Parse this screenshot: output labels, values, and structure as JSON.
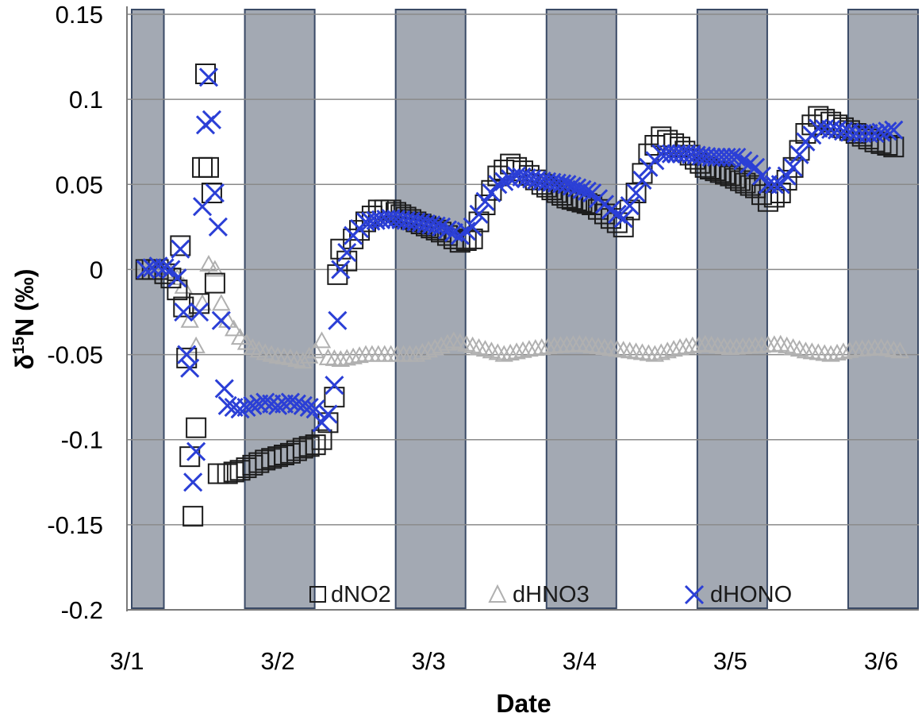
{
  "chart_data": {
    "type": "scatter",
    "title": "",
    "xlabel": "Date",
    "ylabel": "δ15N (‰)",
    "ylabel_main": "δ",
    "ylabel_sup": "15",
    "ylabel_rest": "N (‰)",
    "xlim": [
      "3/1 00:00",
      "3/6 06:00"
    ],
    "ylim": [
      -0.2,
      0.15
    ],
    "x_ticks": [
      "3/1",
      "3/2",
      "3/3",
      "3/4",
      "3/5",
      "3/6"
    ],
    "y_ticks": [
      "0.15",
      "0.1",
      "0.05",
      "0",
      "-0.05",
      "-0.1",
      "-0.15",
      "-0.2"
    ],
    "y_tick_values": [
      0.15,
      0.1,
      0.05,
      0,
      -0.05,
      -0.1,
      -0.15,
      -0.2
    ],
    "grid": "horizontal",
    "legend_position": "bottom",
    "night_bands": [
      [
        "3/1 00:00",
        "3/1 06:00"
      ],
      [
        "3/1 18:00",
        "3/2 06:00"
      ],
      [
        "3/2 18:00",
        "3/3 06:00"
      ],
      [
        "3/3 18:00",
        "3/4 06:00"
      ],
      [
        "3/4 18:00",
        "3/5 06:00"
      ],
      [
        "3/5 18:00",
        "3/6 06:00"
      ]
    ],
    "colors": {
      "band": "#a3a9b3",
      "band_border": "#3a4a66",
      "dNO2": "#1c1c1c",
      "dHNO3": "#b0b0b0",
      "dHONO": "#2b3fd6"
    },
    "series": [
      {
        "name": "dNO2",
        "marker": "square",
        "points": [
          [
            "3/1 03:00",
            0.0
          ],
          [
            "3/1 05:00",
            0.0
          ],
          [
            "3/1 07:00",
            -0.005
          ],
          [
            "3/1 08:00",
            -0.012
          ],
          [
            "3/1 08:30",
            0.014
          ],
          [
            "3/1 09:00",
            -0.022
          ],
          [
            "3/1 09:30",
            -0.052
          ],
          [
            "3/1 10:00",
            -0.11
          ],
          [
            "3/1 10:30",
            -0.145
          ],
          [
            "3/1 11:00",
            -0.093
          ],
          [
            "3/1 11:30",
            -0.02
          ],
          [
            "3/1 12:00",
            0.06
          ],
          [
            "3/1 12:30",
            0.115
          ],
          [
            "3/1 13:00",
            0.06
          ],
          [
            "3/1 13:30",
            0.045
          ],
          [
            "3/1 14:00",
            -0.008
          ],
          [
            "3/1 14:30",
            -0.12
          ],
          [
            "3/1 16:00",
            -0.12
          ],
          [
            "3/1 18:00",
            -0.118
          ],
          [
            "3/1 20:00",
            -0.115
          ],
          [
            "3/1 22:00",
            -0.112
          ],
          [
            "3/2 00:00",
            -0.11
          ],
          [
            "3/2 02:00",
            -0.108
          ],
          [
            "3/2 04:00",
            -0.105
          ],
          [
            "3/2 06:00",
            -0.103
          ],
          [
            "3/2 07:00",
            -0.1
          ],
          [
            "3/2 08:00",
            -0.09
          ],
          [
            "3/2 09:00",
            -0.075
          ],
          [
            "3/2 09:30",
            -0.003
          ],
          [
            "3/2 10:00",
            0.012
          ],
          [
            "3/2 11:00",
            0.005
          ],
          [
            "3/2 12:00",
            0.018
          ],
          [
            "3/2 14:00",
            0.028
          ],
          [
            "3/2 16:00",
            0.035
          ],
          [
            "3/2 18:00",
            0.035
          ],
          [
            "3/2 22:00",
            0.028
          ],
          [
            "3/3 02:00",
            0.022
          ],
          [
            "3/3 05:00",
            0.016
          ],
          [
            "3/3 07:00",
            0.018
          ],
          [
            "3/3 09:00",
            0.038
          ],
          [
            "3/3 11:00",
            0.055
          ],
          [
            "3/3 13:00",
            0.062
          ],
          [
            "3/3 15:00",
            0.058
          ],
          [
            "3/3 18:00",
            0.05
          ],
          [
            "3/3 22:00",
            0.042
          ],
          [
            "3/4 02:00",
            0.038
          ],
          [
            "3/4 05:00",
            0.03
          ],
          [
            "3/4 07:00",
            0.025
          ],
          [
            "3/4 09:00",
            0.045
          ],
          [
            "3/4 11:00",
            0.068
          ],
          [
            "3/4 13:00",
            0.078
          ],
          [
            "3/4 16:00",
            0.072
          ],
          [
            "3/4 20:00",
            0.06
          ],
          [
            "3/5 00:00",
            0.055
          ],
          [
            "3/5 04:00",
            0.048
          ],
          [
            "3/5 06:00",
            0.04
          ],
          [
            "3/5 08:00",
            0.045
          ],
          [
            "3/5 10:00",
            0.06
          ],
          [
            "3/5 12:00",
            0.08
          ],
          [
            "3/5 14:00",
            0.09
          ],
          [
            "3/5 17:00",
            0.085
          ],
          [
            "3/5 20:00",
            0.08
          ],
          [
            "3/5 23:00",
            0.075
          ],
          [
            "3/6 02:00",
            0.072
          ]
        ]
      },
      {
        "name": "dHNO3",
        "marker": "triangle",
        "points": [
          [
            "3/1 03:00",
            0.0
          ],
          [
            "3/1 05:00",
            0.0
          ],
          [
            "3/1 07:00",
            -0.002
          ],
          [
            "3/1 08:00",
            -0.005
          ],
          [
            "3/1 09:00",
            -0.01
          ],
          [
            "3/1 10:00",
            -0.03
          ],
          [
            "3/1 11:00",
            -0.045
          ],
          [
            "3/1 12:00",
            -0.02
          ],
          [
            "3/1 13:00",
            0.003
          ],
          [
            "3/1 14:00",
            0.0
          ],
          [
            "3/1 15:00",
            -0.02
          ],
          [
            "3/1 16:00",
            -0.03
          ],
          [
            "3/1 18:00",
            -0.04
          ],
          [
            "3/1 20:00",
            -0.046
          ],
          [
            "3/1 22:00",
            -0.049
          ],
          [
            "3/2 00:00",
            -0.051
          ],
          [
            "3/2 02:00",
            -0.052
          ],
          [
            "3/2 04:00",
            -0.054
          ],
          [
            "3/2 06:00",
            -0.048
          ],
          [
            "3/2 07:00",
            -0.042
          ],
          [
            "3/2 08:00",
            -0.052
          ],
          [
            "3/2 10:00",
            -0.053
          ],
          [
            "3/2 14:00",
            -0.05
          ],
          [
            "3/2 18:00",
            -0.05
          ],
          [
            "3/2 22:00",
            -0.05
          ],
          [
            "3/3 02:00",
            -0.045
          ],
          [
            "3/3 04:00",
            -0.042
          ],
          [
            "3/3 08:00",
            -0.046
          ],
          [
            "3/3 12:00",
            -0.05
          ],
          [
            "3/3 16:00",
            -0.047
          ],
          [
            "3/3 20:00",
            -0.045
          ],
          [
            "3/4 00:00",
            -0.044
          ],
          [
            "3/4 04:00",
            -0.046
          ],
          [
            "3/4 08:00",
            -0.048
          ],
          [
            "3/4 12:00",
            -0.05
          ],
          [
            "3/4 16:00",
            -0.046
          ],
          [
            "3/4 20:00",
            -0.044
          ],
          [
            "3/5 00:00",
            -0.046
          ],
          [
            "3/5 04:00",
            -0.045
          ],
          [
            "3/5 08:00",
            -0.044
          ],
          [
            "3/5 12:00",
            -0.048
          ],
          [
            "3/5 16:00",
            -0.05
          ],
          [
            "3/5 20:00",
            -0.047
          ],
          [
            "3/6 00:00",
            -0.046
          ],
          [
            "3/6 03:00",
            -0.048
          ]
        ]
      },
      {
        "name": "dHONO",
        "marker": "x",
        "points": [
          [
            "3/1 03:00",
            0.0
          ],
          [
            "3/1 05:00",
            0.002
          ],
          [
            "3/1 07:00",
            0.0
          ],
          [
            "3/1 08:00",
            -0.005
          ],
          [
            "3/1 08:30",
            0.012
          ],
          [
            "3/1 09:00",
            -0.025
          ],
          [
            "3/1 09:30",
            -0.05
          ],
          [
            "3/1 10:00",
            -0.058
          ],
          [
            "3/1 10:30",
            -0.125
          ],
          [
            "3/1 11:00",
            -0.107
          ],
          [
            "3/1 11:30",
            -0.025
          ],
          [
            "3/1 12:00",
            0.037
          ],
          [
            "3/1 12:30",
            0.085
          ],
          [
            "3/1 13:00",
            0.113
          ],
          [
            "3/1 13:30",
            0.088
          ],
          [
            "3/1 14:00",
            0.045
          ],
          [
            "3/1 14:30",
            0.025
          ],
          [
            "3/1 15:00",
            -0.03
          ],
          [
            "3/1 15:30",
            -0.07
          ],
          [
            "3/1 16:00",
            -0.08
          ],
          [
            "3/1 18:00",
            -0.082
          ],
          [
            "3/1 20:00",
            -0.08
          ],
          [
            "3/1 22:00",
            -0.078
          ],
          [
            "3/2 00:00",
            -0.08
          ],
          [
            "3/2 02:00",
            -0.078
          ],
          [
            "3/2 04:00",
            -0.08
          ],
          [
            "3/2 06:00",
            -0.082
          ],
          [
            "3/2 07:00",
            -0.09
          ],
          [
            "3/2 08:00",
            -0.085
          ],
          [
            "3/2 09:00",
            -0.068
          ],
          [
            "3/2 09:30",
            -0.03
          ],
          [
            "3/2 10:00",
            0.0
          ],
          [
            "3/2 11:00",
            0.01
          ],
          [
            "3/2 12:00",
            0.02
          ],
          [
            "3/2 14:00",
            0.028
          ],
          [
            "3/2 18:00",
            0.03
          ],
          [
            "3/2 22:00",
            0.028
          ],
          [
            "3/3 02:00",
            0.025
          ],
          [
            "3/3 05:00",
            0.02
          ],
          [
            "3/3 07:00",
            0.025
          ],
          [
            "3/3 09:00",
            0.04
          ],
          [
            "3/3 11:00",
            0.05
          ],
          [
            "3/3 14:00",
            0.055
          ],
          [
            "3/3 18:00",
            0.052
          ],
          [
            "3/3 22:00",
            0.05
          ],
          [
            "3/4 02:00",
            0.045
          ],
          [
            "3/4 05:00",
            0.035
          ],
          [
            "3/4 07:00",
            0.03
          ],
          [
            "3/4 09:00",
            0.045
          ],
          [
            "3/4 11:00",
            0.06
          ],
          [
            "3/4 13:00",
            0.068
          ],
          [
            "3/4 17:00",
            0.068
          ],
          [
            "3/4 21:00",
            0.066
          ],
          [
            "3/5 01:00",
            0.066
          ],
          [
            "3/5 04:00",
            0.06
          ],
          [
            "3/5 06:00",
            0.05
          ],
          [
            "3/5 08:00",
            0.05
          ],
          [
            "3/5 10:00",
            0.06
          ],
          [
            "3/5 12:00",
            0.075
          ],
          [
            "3/5 14:00",
            0.083
          ],
          [
            "3/5 17:00",
            0.082
          ],
          [
            "3/5 20:00",
            0.08
          ],
          [
            "3/5 23:00",
            0.08
          ],
          [
            "3/6 02:00",
            0.082
          ]
        ]
      }
    ]
  }
}
